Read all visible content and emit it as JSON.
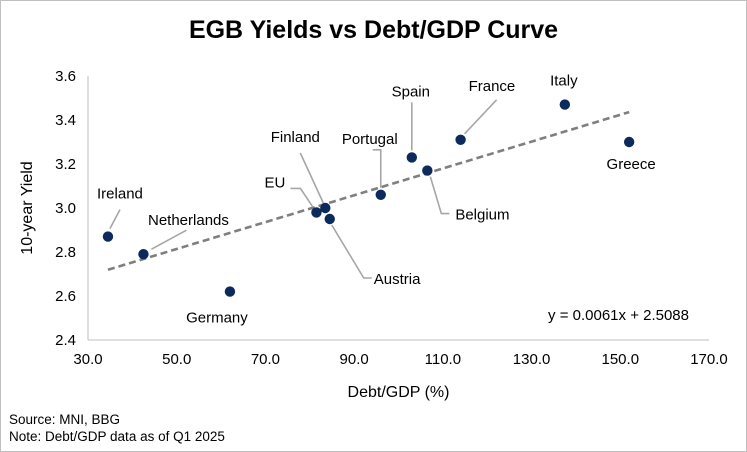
{
  "chart_data": {
    "type": "scatter",
    "title": "EGB Yields vs Debt/GDP Curve",
    "xlabel": "Debt/GDP (%)",
    "ylabel": "10-year Yield",
    "xlim": [
      30.0,
      170.0
    ],
    "ylim": [
      2.4,
      3.6
    ],
    "xticks": [
      "30.0",
      "50.0",
      "70.0",
      "90.0",
      "110.0",
      "130.0",
      "150.0",
      "170.0"
    ],
    "yticks": [
      "2.4",
      "2.6",
      "2.8",
      "3.0",
      "3.2",
      "3.4",
      "3.6"
    ],
    "grid": false,
    "points": [
      {
        "label": "Ireland",
        "x": 34.5,
        "y": 2.87
      },
      {
        "label": "Netherlands",
        "x": 42.5,
        "y": 2.79
      },
      {
        "label": "Germany",
        "x": 62.0,
        "y": 2.62
      },
      {
        "label": "EU",
        "x": 81.5,
        "y": 2.98
      },
      {
        "label": "Finland",
        "x": 83.5,
        "y": 3.0
      },
      {
        "label": "Austria",
        "x": 84.5,
        "y": 2.95
      },
      {
        "label": "Portugal",
        "x": 96.0,
        "y": 3.06
      },
      {
        "label": "Spain",
        "x": 103.0,
        "y": 3.23
      },
      {
        "label": "Belgium",
        "x": 106.5,
        "y": 3.17
      },
      {
        "label": "France",
        "x": 114.0,
        "y": 3.31
      },
      {
        "label": "Italy",
        "x": 137.5,
        "y": 3.47
      },
      {
        "label": "Greece",
        "x": 152.0,
        "y": 3.3
      }
    ],
    "trendline": {
      "slope": 0.0061,
      "intercept": 2.5088,
      "x_range": [
        34.5,
        152.0
      ],
      "style": "dashed"
    },
    "equation": "y = 0.0061x + 2.5088",
    "colors": {
      "points": "#0d2a5c",
      "trendline": "#7f7f7f",
      "leader": "#a6a6a6"
    }
  },
  "footer": {
    "source": "Source: MNI, BBG",
    "note": "Note: Debt/GDP data as of Q1 2025"
  }
}
